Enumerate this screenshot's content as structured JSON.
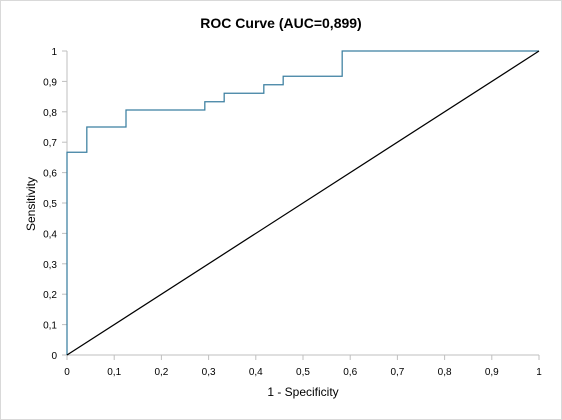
{
  "chart_data": {
    "type": "line",
    "title": "ROC Curve (AUC=0,899)",
    "xlabel": "1 - Specificity",
    "ylabel": "Sensitivity",
    "xlim": [
      0,
      1
    ],
    "ylim": [
      0,
      1
    ],
    "x_ticks": [
      "0",
      "0,1",
      "0,2",
      "0,3",
      "0,4",
      "0,5",
      "0,6",
      "0,7",
      "0,8",
      "0,9",
      "1"
    ],
    "y_ticks": [
      "0",
      "0,1",
      "0,2",
      "0,3",
      "0,4",
      "0,5",
      "0,6",
      "0,7",
      "0,8",
      "0,9",
      "1"
    ],
    "grid": false,
    "legend": "none",
    "series": [
      {
        "color": "#3b7fa0",
        "step": true,
        "x": [
          0,
          0,
          0.042,
          0.042,
          0.125,
          0.125,
          0.292,
          0.292,
          0.333,
          0.333,
          0.417,
          0.417,
          0.458,
          0.458,
          0.583,
          0.583,
          1
        ],
        "y": [
          0,
          0.667,
          0.667,
          0.75,
          0.75,
          0.806,
          0.806,
          0.833,
          0.833,
          0.861,
          0.861,
          0.889,
          0.889,
          0.917,
          0.917,
          1,
          1
        ]
      },
      {
        "color": "#000000",
        "x": [
          0,
          1
        ],
        "y": [
          0,
          1
        ]
      }
    ]
  }
}
